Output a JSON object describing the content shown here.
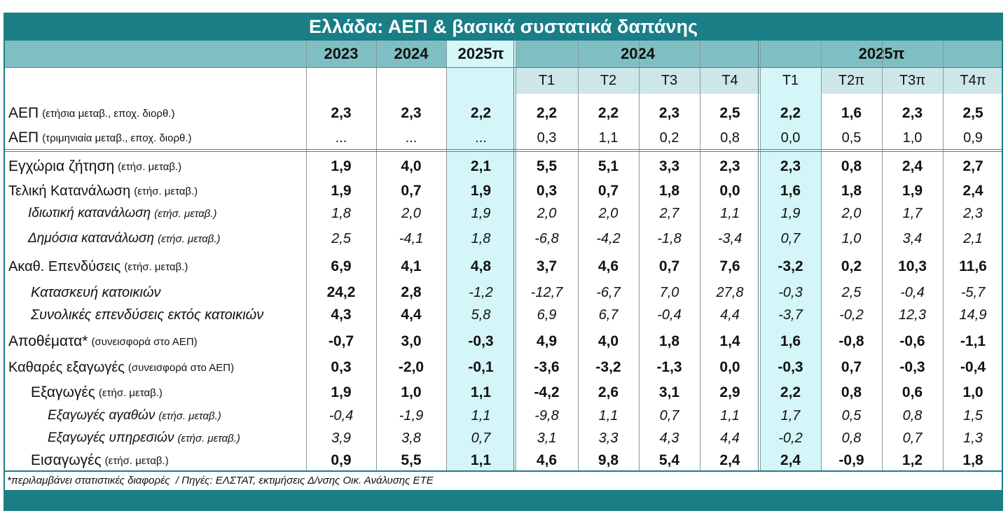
{
  "title": "Ελλάδα: ΑΕΠ & βασικά συστατικά δαπάνης",
  "header": {
    "annual": [
      "2023",
      "2024",
      "2025π"
    ],
    "groups": [
      "2024",
      "2025π"
    ],
    "quarters": [
      [
        "Τ1",
        "Τ2",
        "Τ3",
        "Τ4"
      ],
      [
        "Τ1",
        "Τ2π",
        "Τ3π",
        "Τ4π"
      ]
    ]
  },
  "rows": [
    {
      "label": "ΑΕΠ",
      "note": "(ετήσια μεταβ., εποχ. διορθ.)",
      "values": [
        "2,3",
        "2,3",
        "2,2",
        "2,2",
        "2,2",
        "2,3",
        "2,5",
        "2,2",
        "1,6",
        "2,3",
        "2,5"
      ]
    },
    {
      "label": "ΑΕΠ",
      "note": "(τριμηνιαία μεταβ., εποχ. διορθ.)",
      "values": [
        "...",
        "...",
        "...",
        "0,3",
        "1,1",
        "0,2",
        "0,8",
        "0,0",
        "0,5",
        "1,0",
        "0,9"
      ]
    },
    {
      "label": "Εγχώρια ζήτηση",
      "note": "(ετήσ. μεταβ.)",
      "values": [
        "1,9",
        "4,0",
        "2,1",
        "5,5",
        "5,1",
        "3,3",
        "2,3",
        "2,3",
        "0,8",
        "2,4",
        "2,7"
      ]
    },
    {
      "label": "Τελική Κατανάλωση",
      "note": "(ετήσ. μεταβ.)",
      "values": [
        "1,9",
        "0,7",
        "1,9",
        "0,3",
        "0,7",
        "1,8",
        "0,0",
        "1,6",
        "1,8",
        "1,9",
        "2,4"
      ]
    },
    {
      "label": "Ιδιωτική κατανάλωση",
      "note": "(ετήσ. μεταβ.)",
      "values": [
        "1,8",
        "2,0",
        "1,9",
        "2,0",
        "2,0",
        "2,7",
        "1,1",
        "1,9",
        "2,0",
        "1,7",
        "2,3"
      ]
    },
    {
      "label": "Δημόσια κατανάλωση",
      "note": "(ετήσ. μεταβ.)",
      "values": [
        "2,5",
        "-4,1",
        "1,8",
        "-6,8",
        "-4,2",
        "-1,8",
        "-3,4",
        "0,7",
        "1,0",
        "3,4",
        "2,1"
      ]
    },
    {
      "label": "Ακαθ. Επενδύσεις",
      "note": "(ετήσ. μεταβ.)",
      "values": [
        "6,9",
        "4,1",
        "4,8",
        "3,7",
        "4,6",
        "0,7",
        "7,6",
        "-3,2",
        "0,2",
        "10,3",
        "11,6"
      ]
    },
    {
      "label": "Κατασκευή κατοικιών",
      "values": [
        "24,2",
        "2,8",
        "-1,2",
        "-12,7",
        "-6,7",
        "7,0",
        "27,8",
        "-0,3",
        "2,5",
        "-0,4",
        "-5,7"
      ]
    },
    {
      "label": "Συνολικές επενδύσεις εκτός κατοικιών",
      "values": [
        "4,3",
        "4,4",
        "5,8",
        "6,9",
        "6,7",
        "-0,4",
        "4,4",
        "-3,7",
        "-0,2",
        "12,3",
        "14,9"
      ]
    },
    {
      "label": "Αποθέματα*",
      "note": "(συνεισφορά στο ΑΕΠ)",
      "values": [
        "-0,7",
        "3,0",
        "-0,3",
        "4,9",
        "4,0",
        "1,8",
        "1,4",
        "1,6",
        "-0,8",
        "-0,6",
        "-1,1"
      ]
    },
    {
      "label": "Καθαρές εξαγωγές",
      "note": "(συνεισφορά στο ΑΕΠ)",
      "values": [
        "0,3",
        "-2,0",
        "-0,1",
        "-3,6",
        "-3,2",
        "-1,3",
        "0,0",
        "-0,3",
        "0,7",
        "-0,3",
        "-0,4"
      ]
    },
    {
      "label": "Εξαγωγές",
      "note": "(ετήσ. μεταβ.)",
      "values": [
        "1,9",
        "1,0",
        "1,1",
        "-4,2",
        "2,6",
        "3,1",
        "2,9",
        "2,2",
        "0,8",
        "0,6",
        "1,0"
      ]
    },
    {
      "label": "Εξαγωγές αγαθών",
      "note": "(ετήσ. μεταβ.)",
      "values": [
        "-0,4",
        "-1,9",
        "1,1",
        "-9,8",
        "1,1",
        "0,7",
        "1,1",
        "1,7",
        "0,5",
        "0,8",
        "1,5"
      ]
    },
    {
      "label": "Εξαγωγές υπηρεσιών",
      "note": "(ετήσ. μεταβ.)",
      "values": [
        "3,9",
        "3,8",
        "0,7",
        "3,1",
        "3,3",
        "4,3",
        "4,4",
        "-0,2",
        "0,8",
        "0,7",
        "1,3"
      ]
    },
    {
      "label": "Εισαγωγές",
      "note": "(ετήσ. μεταβ.)",
      "values": [
        "0,9",
        "5,5",
        "1,1",
        "4,6",
        "9,8",
        "5,4",
        "2,4",
        "2,4",
        "-0,9",
        "1,2",
        "1,8"
      ]
    }
  ],
  "footnote": "*περιλαμβάνει στατιστικές διαφορές  / Πηγές: ΕΛΣΤΑΤ, εκτιμήσεις Δ/νσης Οικ. Ανάλυσης ΕΤΕ"
}
